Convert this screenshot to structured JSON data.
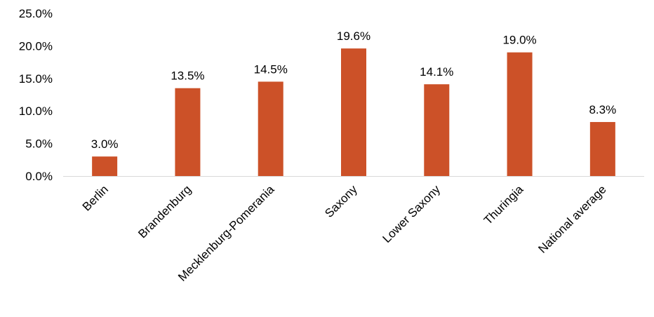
{
  "chart_data": {
    "type": "bar",
    "categories": [
      "Berlin",
      "Brandenburg",
      "Mecklenburg-Pomerania",
      "Saxony",
      "Lower Saxony",
      "Thuringia",
      "National average"
    ],
    "values": [
      3.0,
      13.5,
      14.5,
      19.6,
      14.1,
      19.0,
      8.3
    ],
    "value_labels": [
      "3.0%",
      "13.5%",
      "14.5%",
      "19.6%",
      "14.1%",
      "19.0%",
      "8.3%"
    ],
    "yticks": [
      0,
      5,
      10,
      15,
      20,
      25
    ],
    "ytick_labels": [
      "0.0%",
      "5.0%",
      "10.0%",
      "15.0%",
      "20.0%",
      "25.0%"
    ],
    "ylim": [
      0,
      25
    ],
    "grid": false,
    "legend": "none",
    "bar_color": "#CC5128",
    "axis_color": "#D9D9D9"
  }
}
